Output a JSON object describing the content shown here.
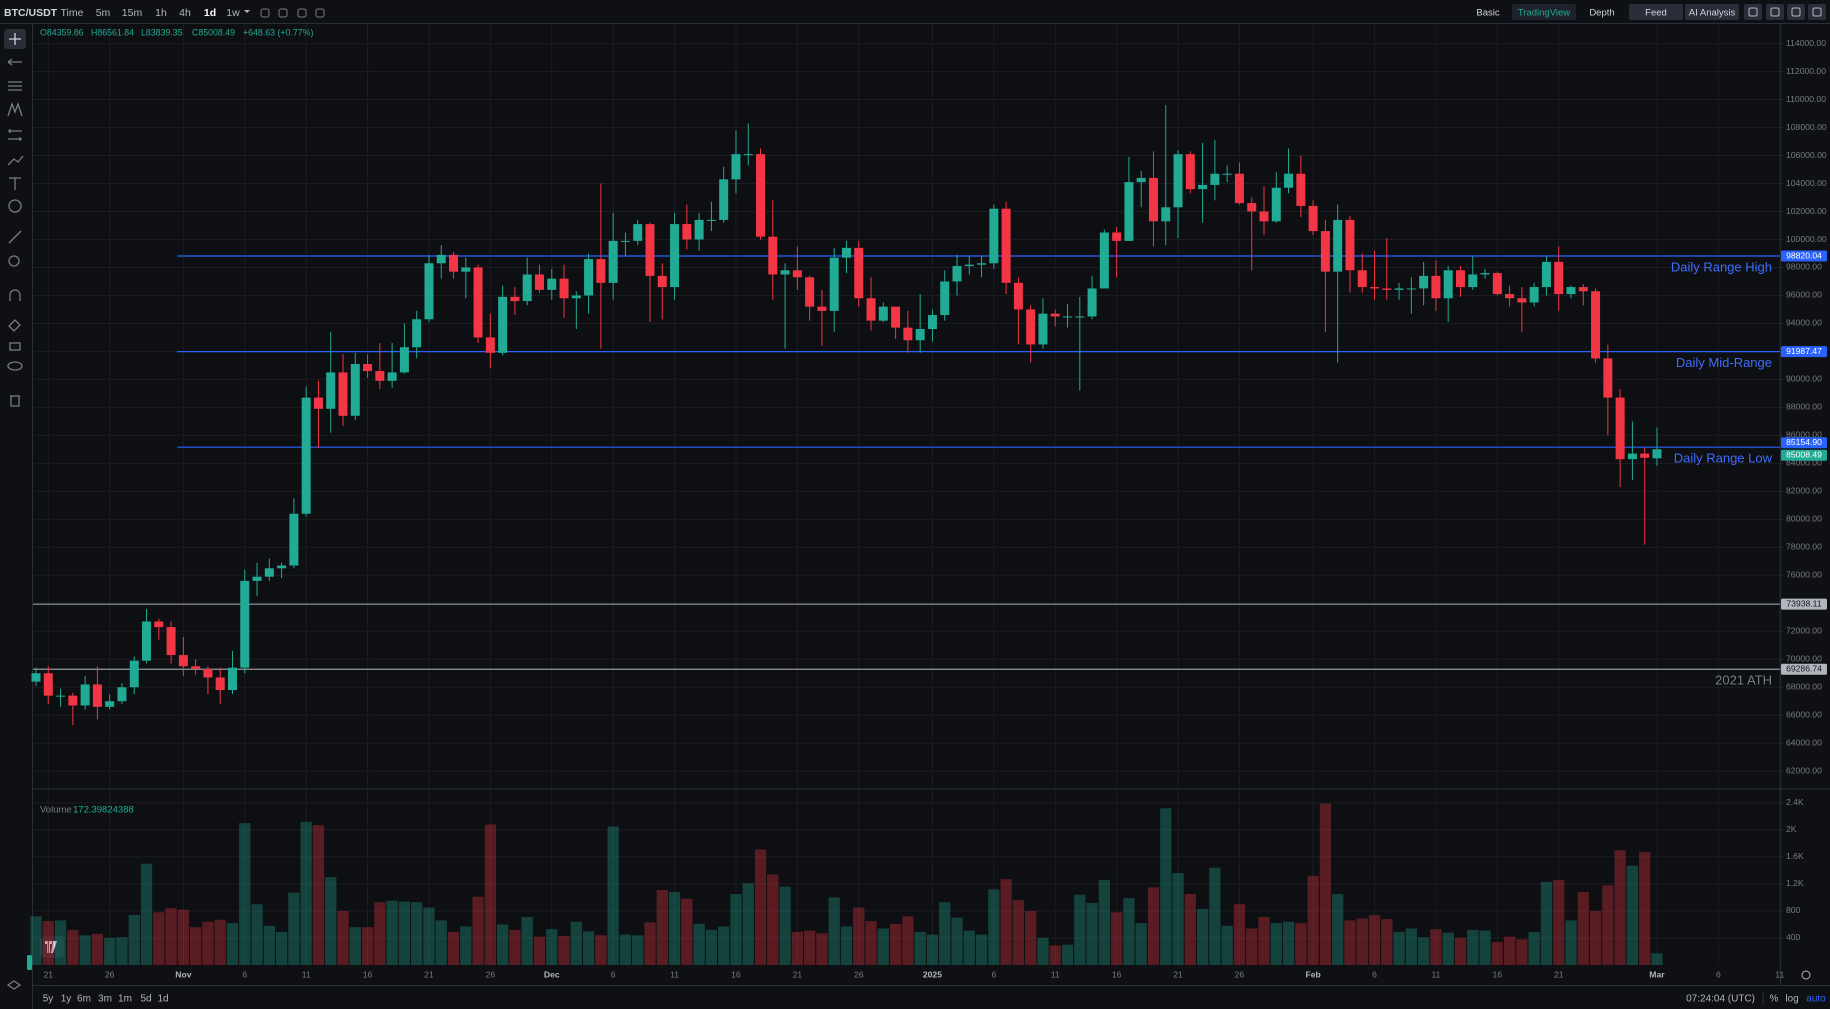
{
  "header": {
    "symbol": "BTC/USDT",
    "intervals": [
      "Time",
      "5m",
      "15m",
      "1h",
      "4h",
      "1d",
      "1w"
    ],
    "active_interval": "1d",
    "views": [
      "Basic",
      "TradingView",
      "Depth"
    ],
    "active_view": "TradingView",
    "buttons": [
      "Feed",
      "AI Analysis"
    ]
  },
  "chart_data": {
    "type": "candlestick",
    "ohlc_text": [
      "O84359.86",
      "H86561.84",
      "L83839.35",
      "C85008.49",
      "+648.63 (+0.77%)"
    ],
    "categories": [
      null,
      "21",
      null,
      null,
      null,
      null,
      "26",
      null,
      null,
      null,
      null,
      null,
      "Nov",
      null,
      null,
      null,
      null,
      "6",
      null,
      null,
      null,
      null,
      "11",
      null,
      null,
      null,
      null,
      "16",
      null,
      null,
      null,
      null,
      "21",
      null,
      null,
      null,
      null,
      "26",
      null,
      null,
      null,
      null,
      "Dec",
      null,
      null,
      null,
      null,
      "6",
      null,
      null,
      null,
      null,
      "11",
      null,
      null,
      null,
      null,
      "16",
      null,
      null,
      null,
      null,
      "21",
      null,
      null,
      null,
      null,
      "26",
      null,
      null,
      null,
      null,
      null,
      "2025",
      null,
      null,
      null,
      null,
      "6",
      null,
      null,
      null,
      null,
      "11",
      null,
      null,
      null,
      null,
      "16",
      null,
      null,
      null,
      null,
      "21",
      null,
      null,
      null,
      null,
      "26",
      null,
      null,
      null,
      null,
      null,
      "Feb",
      null,
      null,
      null,
      null,
      "6",
      null,
      null,
      null,
      null,
      "11",
      null,
      null,
      null,
      null,
      "16",
      null,
      null,
      null,
      null,
      "21",
      null,
      null,
      null,
      null,
      null,
      null,
      null,
      "Mar",
      null,
      null,
      null,
      null,
      "6",
      null,
      null,
      null,
      null,
      "11"
    ],
    "open": [
      68400,
      69000,
      67400,
      67400,
      66700,
      68200,
      66600,
      67000,
      68000,
      69900,
      72700,
      72300,
      70300,
      69500,
      69300,
      68700,
      67800,
      69400,
      75600,
      75900,
      76500,
      76700,
      80400,
      88700,
      87900,
      90500,
      87400,
      91100,
      90600,
      89900,
      90500,
      92300,
      94300,
      98300,
      98900,
      97700,
      98000,
      93000,
      91900,
      95900,
      95600,
      97500,
      96400,
      97200,
      95800,
      96000,
      98600,
      96900,
      99900,
      99900,
      101100,
      97400,
      96600,
      101100,
      100000,
      101400,
      101400,
      104300,
      106100,
      106100,
      100200,
      97500,
      97800,
      97300,
      95200,
      94900,
      98700,
      99400,
      95800,
      94200,
      95200,
      93700,
      92800,
      93600,
      94600,
      97000,
      98100,
      98200,
      98300,
      102200,
      96900,
      95000,
      92500,
      94700,
      94500,
      94500,
      94500,
      96500,
      100500,
      99900,
      104100,
      104400,
      101300,
      102300,
      106100,
      103600,
      103900,
      104700,
      104700,
      102600,
      102000,
      101300,
      103700,
      104700,
      102400,
      100600,
      97700,
      101400,
      97800,
      96600,
      96500,
      96400,
      96500,
      96500,
      97400,
      95800,
      97800,
      96600,
      97500,
      97600,
      96100,
      95800,
      95500,
      96600,
      98400,
      96100,
      96600,
      96300,
      91500,
      88700,
      84300,
      84700,
      84359.86,
      null,
      null,
      null,
      null,
      null,
      null,
      null,
      null,
      null,
      null
    ],
    "high": [
      69400,
      69500,
      67900,
      67600,
      68800,
      69500,
      67500,
      68300,
      70200,
      73600,
      72900,
      72700,
      71600,
      70000,
      69500,
      69400,
      70600,
      76400,
      76900,
      77200,
      76900,
      81500,
      89500,
      89900,
      93400,
      91800,
      91900,
      91800,
      92600,
      92600,
      94000,
      94900,
      98900,
      99600,
      99100,
      98700,
      98200,
      94700,
      96700,
      96600,
      98700,
      98200,
      97900,
      98200,
      96300,
      99000,
      104000,
      101900,
      100500,
      101400,
      101200,
      98300,
      101900,
      102500,
      101900,
      102700,
      105200,
      107800,
      108300,
      106500,
      102800,
      98300,
      99500,
      97400,
      96400,
      99400,
      99900,
      99900,
      97300,
      95500,
      95200,
      94900,
      96100,
      95000,
      97800,
      98900,
      98800,
      98800,
      102500,
      102700,
      97300,
      95300,
      95800,
      95000,
      95400,
      95900,
      97400,
      100700,
      100900,
      105900,
      104900,
      106300,
      109600,
      106400,
      106300,
      106900,
      107100,
      105300,
      105500,
      103000,
      103800,
      104800,
      106500,
      106000,
      102800,
      101400,
      102500,
      101700,
      99000,
      99200,
      100100,
      96900,
      97300,
      98400,
      98500,
      98100,
      98100,
      98800,
      97900,
      97700,
      96700,
      96600,
      96900,
      98800,
      99500,
      96700,
      96800,
      96500,
      92500,
      89300,
      87000,
      85100,
      86561.84,
      null,
      null,
      null,
      null,
      null,
      null,
      null,
      null,
      null,
      null
    ],
    "low": [
      68100,
      66800,
      66600,
      65300,
      66400,
      65700,
      66400,
      66800,
      67500,
      69700,
      71400,
      69700,
      68800,
      68900,
      67500,
      66800,
      67500,
      69000,
      74500,
      75600,
      75800,
      76500,
      80200,
      85100,
      86200,
      86700,
      87100,
      90100,
      89300,
      89400,
      90400,
      91500,
      94100,
      97200,
      97200,
      95800,
      92600,
      90800,
      91700,
      94600,
      95300,
      96200,
      95700,
      94400,
      93600,
      94700,
      92200,
      95700,
      98800,
      99600,
      94100,
      94300,
      95700,
      99300,
      99200,
      100600,
      101200,
      103300,
      105300,
      100000,
      95700,
      92200,
      96400,
      94200,
      92400,
      93400,
      97600,
      95200,
      93500,
      94100,
      92900,
      91900,
      91900,
      92700,
      94200,
      96000,
      97500,
      97300,
      97900,
      96100,
      92500,
      91200,
      92200,
      93800,
      93700,
      89200,
      94300,
      96500,
      97300,
      99900,
      102300,
      99500,
      99600,
      100100,
      103300,
      101200,
      102800,
      104100,
      102500,
      97800,
      100300,
      101200,
      103300,
      101600,
      100300,
      93400,
      91200,
      96200,
      96200,
      95700,
      95700,
      95700,
      94700,
      95300,
      94900,
      94100,
      95900,
      96400,
      97200,
      96000,
      95200,
      93400,
      95200,
      96000,
      94900,
      95800,
      95300,
      91200,
      86000,
      82300,
      82800,
      78200,
      83839.35,
      null,
      null,
      null,
      null,
      null,
      null,
      null,
      null,
      null,
      null
    ],
    "close": [
      69000,
      67400,
      67400,
      66700,
      68200,
      66600,
      67000,
      68000,
      69900,
      72700,
      72300,
      70300,
      69500,
      69300,
      68700,
      67800,
      69400,
      75600,
      75900,
      76500,
      76700,
      80400,
      88700,
      87900,
      90500,
      87400,
      91100,
      90600,
      89900,
      90500,
      92300,
      94300,
      98300,
      98900,
      97700,
      98000,
      93000,
      91900,
      95900,
      95600,
      97500,
      96400,
      97200,
      95800,
      96000,
      98600,
      96900,
      99900,
      99900,
      101100,
      97400,
      96600,
      101100,
      100000,
      101400,
      101400,
      104300,
      106100,
      106100,
      100200,
      97500,
      97800,
      97300,
      95200,
      94900,
      98700,
      99400,
      95800,
      94200,
      95200,
      93700,
      92800,
      93600,
      94600,
      97000,
      98100,
      98200,
      98300,
      102200,
      96900,
      95000,
      92500,
      94700,
      94500,
      94500,
      94500,
      96500,
      100500,
      99900,
      104100,
      104400,
      101300,
      102300,
      106100,
      103600,
      103900,
      104700,
      104700,
      102600,
      102000,
      101300,
      103700,
      104700,
      102400,
      100600,
      97700,
      101400,
      97800,
      96600,
      96500,
      96400,
      96500,
      96500,
      97400,
      95800,
      97800,
      96600,
      97500,
      97600,
      96100,
      95800,
      95500,
      96600,
      98400,
      96100,
      96600,
      96300,
      91500,
      88700,
      84300,
      84700,
      84400,
      85008.49,
      null,
      null,
      null,
      null,
      null,
      null,
      null,
      null,
      null,
      null
    ],
    "volume_title": "Volume",
    "volume": [
      720,
      650,
      660,
      520,
      440,
      460,
      400,
      410,
      740,
      1500,
      780,
      840,
      820,
      560,
      640,
      670,
      620,
      2100,
      900,
      580,
      490,
      1070,
      2120,
      2070,
      1300,
      800,
      560,
      560,
      930,
      950,
      940,
      930,
      850,
      660,
      490,
      570,
      1010,
      2080,
      600,
      520,
      710,
      420,
      530,
      430,
      640,
      500,
      440,
      2050,
      450,
      440,
      630,
      1110,
      1080,
      980,
      610,
      520,
      570,
      1050,
      1210,
      1710,
      1340,
      1160,
      490,
      510,
      470,
      1000,
      570,
      850,
      650,
      540,
      610,
      720,
      490,
      450,
      930,
      700,
      510,
      450,
      1120,
      1270,
      960,
      800,
      400,
      290,
      300,
      1040,
      920,
      1260,
      780,
      990,
      620,
      1150,
      2320,
      1360,
      1050,
      830,
      1440,
      580,
      900,
      540,
      710,
      620,
      640,
      620,
      1320,
      2390,
      1050,
      660,
      690,
      740,
      680,
      490,
      540,
      410,
      530,
      480,
      400,
      520,
      510,
      340,
      420,
      380,
      490,
      1230,
      1260,
      660,
      1080,
      800,
      1180,
      1700,
      1470,
      1670,
      172.39824388,
      null,
      null,
      null,
      null,
      null,
      null,
      null,
      null,
      null,
      null
    ],
    "up_color": "#22ab94",
    "down_color": "#f23645",
    "ylim": [
      60800,
      115400
    ],
    "yticks": [
      {
        "value": 62000,
        "label": "62000.00"
      },
      {
        "value": 64000,
        "label": "64000.00"
      },
      {
        "value": 66000,
        "label": "66000.00"
      },
      {
        "value": 68000,
        "label": "68000.00"
      },
      {
        "value": 70000,
        "label": "70000.00"
      },
      {
        "value": 72000,
        "label": "72000.00"
      },
      {
        "value": 74000,
        "label": "74000.00"
      },
      {
        "value": 76000,
        "label": "76000.00"
      },
      {
        "value": 78000,
        "label": "78000.00"
      },
      {
        "value": 80000,
        "label": "80000.00"
      },
      {
        "value": 82000,
        "label": "82000.00"
      },
      {
        "value": 84000,
        "label": "84000.00"
      },
      {
        "value": 86000,
        "label": "86000.00"
      },
      {
        "value": 88000,
        "label": "88000.00"
      },
      {
        "value": 90000,
        "label": "90000.00"
      },
      {
        "value": 92000,
        "label": "92000.00"
      },
      {
        "value": 94000,
        "label": "94000.00"
      },
      {
        "value": 96000,
        "label": "96000.00"
      },
      {
        "value": 98000,
        "label": "98000.00"
      },
      {
        "value": 100000,
        "label": "100000.00"
      },
      {
        "value": 102000,
        "label": "102000.00"
      },
      {
        "value": 104000,
        "label": "104000.00"
      },
      {
        "value": 106000,
        "label": "106000.00"
      },
      {
        "value": 108000,
        "label": "108000.00"
      },
      {
        "value": 110000,
        "label": "110000.00"
      },
      {
        "value": 112000,
        "label": "112000.00"
      },
      {
        "value": 114000,
        "label": "114000.00"
      }
    ],
    "volume_ylim": [
      0,
      2590
    ],
    "volume_ticks": [
      400,
      800,
      {
        "value": 1200,
        "label": "1.2K"
      },
      {
        "value": 1600,
        "label": "1.6K"
      },
      {
        "value": 2000,
        "label": "2K"
      },
      {
        "value": 2400,
        "label": "2.4K"
      }
    ],
    "grid": true,
    "levels": [
      {
        "name": "Daily Range High",
        "value": 98820.04,
        "value_label": "98820.04",
        "color": "#2962ff",
        "extend": "right"
      },
      {
        "name": "Daily Mid-Range",
        "value": 91987.47,
        "value_label": "91987.47",
        "color": "#2962ff",
        "extend": "right"
      },
      {
        "name": "Daily Range Low",
        "value": 85154.9,
        "value_label": "85154.90",
        "color": "#2962ff",
        "extend": "right"
      },
      {
        "value": 73938.11,
        "value_label": "73938.11",
        "color": "#9598a1",
        "extend": "both"
      },
      {
        "name": "2021 ATH",
        "value": 69286.74,
        "value_label": "69286.74",
        "color": "#9598a1",
        "extend": "both"
      }
    ]
  },
  "footer": {
    "ranges": [
      "5y",
      "1y",
      "6m",
      "3m",
      "1m",
      "5d",
      "1d"
    ],
    "clock": "07:24:04 (UTC)",
    "scale_options": [
      "%",
      "log",
      "auto"
    ]
  }
}
